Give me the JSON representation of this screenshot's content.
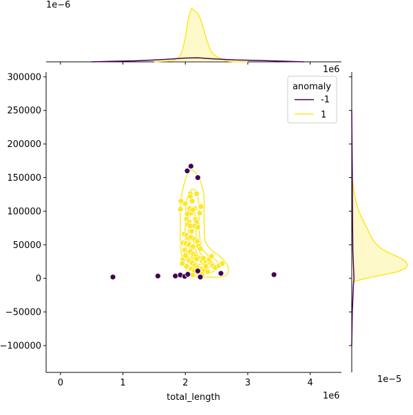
{
  "chart_data": {
    "type": "scatter",
    "kind": "jointplot",
    "xlabel": "total_length",
    "ylabel": "",
    "xlim": [
      -230000,
      4500000
    ],
    "ylim": [
      -140000,
      307000
    ],
    "x_ticks": [
      0,
      1000000,
      2000000,
      3000000,
      4000000
    ],
    "x_tick_labels": [
      "0",
      "1",
      "2",
      "3",
      "4"
    ],
    "x_offset_label": "1e6",
    "y_ticks": [
      -100000,
      -50000,
      0,
      50000,
      100000,
      150000,
      200000,
      250000,
      300000
    ],
    "y_tick_labels": [
      "−100000",
      "−50000",
      "0",
      "50000",
      "100000",
      "150000",
      "200000",
      "250000",
      "300000"
    ],
    "top_marginal_offset_label": "1e−6",
    "right_marginal_offset_label": "1e−5",
    "right_marginal_top_label": "1e6",
    "legend": {
      "title": "anomaly",
      "position": "top-right",
      "entries": [
        {
          "label": "-1",
          "color": "#440154"
        },
        {
          "label": "1",
          "color": "#fde725"
        }
      ]
    },
    "colors": {
      "anomaly": "#440154",
      "normal": "#fde725",
      "normal_edge": "#ffffff"
    },
    "series": [
      {
        "name": "-1",
        "points": [
          [
            840000,
            2000
          ],
          [
            1560000,
            3500
          ],
          [
            1840000,
            3500
          ],
          [
            1920000,
            5000
          ],
          [
            1990000,
            3000
          ],
          [
            2040000,
            6000
          ],
          [
            2200000,
            11000
          ],
          [
            2240000,
            2000
          ],
          [
            2570000,
            7500
          ],
          [
            3420000,
            5500
          ],
          [
            2030000,
            160000
          ],
          [
            2090000,
            167000
          ],
          [
            2200000,
            150000
          ]
        ]
      },
      {
        "name": "1",
        "points": [
          [
            1930000,
            115000
          ],
          [
            1920000,
            103000
          ],
          [
            2000000,
            111000
          ],
          [
            2070000,
            104000
          ],
          [
            2080000,
            126000
          ],
          [
            2080000,
            122000
          ],
          [
            2110000,
            115000
          ],
          [
            2180000,
            126000
          ],
          [
            2150000,
            104000
          ],
          [
            2090000,
            97000
          ],
          [
            2120000,
            102000
          ],
          [
            2230000,
            97000
          ],
          [
            2250000,
            107000
          ],
          [
            2030000,
            96000
          ],
          [
            2020000,
            88000
          ],
          [
            2060000,
            84000
          ],
          [
            2160000,
            88000
          ],
          [
            2180000,
            84000
          ],
          [
            2040000,
            80000
          ],
          [
            2080000,
            78000
          ],
          [
            2150000,
            78000
          ],
          [
            2200000,
            76000
          ],
          [
            2100000,
            70000
          ],
          [
            1980000,
            66000
          ],
          [
            2020000,
            64000
          ],
          [
            2050000,
            60000
          ],
          [
            2090000,
            61000
          ],
          [
            2150000,
            58000
          ],
          [
            2190000,
            55000
          ],
          [
            1960000,
            53000
          ],
          [
            2010000,
            52000
          ],
          [
            2060000,
            50000
          ],
          [
            2120000,
            47000
          ],
          [
            2210000,
            48000
          ],
          [
            2240000,
            44000
          ],
          [
            1990000,
            42000
          ],
          [
            2040000,
            38000
          ],
          [
            2080000,
            40000
          ],
          [
            2130000,
            36000
          ],
          [
            2170000,
            33000
          ],
          [
            2230000,
            30000
          ],
          [
            2270000,
            26000
          ],
          [
            2310000,
            22000
          ],
          [
            2350000,
            20000
          ],
          [
            2400000,
            24000
          ],
          [
            2440000,
            19000
          ],
          [
            2480000,
            16000
          ],
          [
            2540000,
            19000
          ],
          [
            2590000,
            22000
          ],
          [
            1960000,
            28000
          ],
          [
            2030000,
            30000
          ],
          [
            2070000,
            26000
          ],
          [
            2110000,
            23000
          ],
          [
            2150000,
            19000
          ],
          [
            2190000,
            16000
          ],
          [
            2260000,
            14000
          ],
          [
            2300000,
            12000
          ],
          [
            2360000,
            10000
          ],
          [
            1950000,
            22000
          ],
          [
            2020000,
            18000
          ],
          [
            2090000,
            14000
          ],
          [
            2140000,
            11000
          ],
          [
            2210000,
            8000
          ],
          [
            2270000,
            6000
          ],
          [
            2320000,
            26000
          ],
          [
            2380000,
            28000
          ],
          [
            2420000,
            33000
          ],
          [
            2000000,
            34000
          ],
          [
            2180000,
            29000
          ],
          [
            2290000,
            30000
          ],
          [
            2120000,
            5000
          ],
          [
            2330000,
            18000
          ]
        ]
      }
    ],
    "top_marginal": {
      "x": [
        1500000,
        1800000,
        1900000,
        1950000,
        2000000,
        2050000,
        2100000,
        2150000,
        2200000,
        2250000,
        2300000,
        2350000,
        2400000,
        2450000,
        2500000,
        2550000,
        2600000,
        2650000,
        2700000,
        2800000,
        3000000
      ],
      "density_1": [
        0.0,
        0.02,
        0.08,
        0.2,
        0.45,
        0.82,
        1.0,
        0.95,
        0.9,
        0.78,
        0.58,
        0.38,
        0.22,
        0.14,
        0.1,
        0.07,
        0.04,
        0.02,
        0.01,
        0.0,
        0.0
      ],
      "density_minus1_x": [
        500000,
        800000,
        1200000,
        1600000,
        2000000,
        2200000,
        2400000,
        2800000,
        3200000,
        3600000,
        3900000
      ],
      "density_minus1": [
        0.0,
        0.01,
        0.02,
        0.04,
        0.07,
        0.075,
        0.06,
        0.035,
        0.025,
        0.012,
        0.0
      ]
    },
    "right_marginal": {
      "y": [
        -5000,
        0,
        5000,
        10000,
        15000,
        20000,
        25000,
        30000,
        35000,
        40000,
        45000,
        50000,
        55000,
        60000,
        65000,
        70000,
        80000,
        90000,
        100000,
        110000,
        120000,
        135000,
        150000
      ],
      "density_1": [
        0.03,
        0.25,
        0.55,
        0.83,
        0.97,
        1.0,
        0.97,
        0.88,
        0.75,
        0.62,
        0.52,
        0.45,
        0.4,
        0.36,
        0.33,
        0.3,
        0.24,
        0.18,
        0.13,
        0.09,
        0.06,
        0.03,
        0.01
      ],
      "density_minus1_y": [
        -100000,
        -50000,
        -10000,
        0,
        10000,
        40000,
        80000,
        120000,
        160000,
        200000,
        250000
      ],
      "density_minus1": [
        0.0,
        0.01,
        0.03,
        0.04,
        0.035,
        0.02,
        0.015,
        0.012,
        0.01,
        0.005,
        0.0
      ]
    },
    "contours": [
      {
        "level": "outer",
        "points": [
          [
            2250000,
            2000
          ],
          [
            2500000,
            2000
          ],
          [
            2660000,
            5000
          ],
          [
            2680000,
            18000
          ],
          [
            2560000,
            32000
          ],
          [
            2420000,
            42000
          ],
          [
            2320000,
            56000
          ],
          [
            2300000,
            84000
          ],
          [
            2300000,
            118000
          ],
          [
            2260000,
            140000
          ],
          [
            2160000,
            158000
          ],
          [
            2060000,
            160000
          ],
          [
            1980000,
            140000
          ],
          [
            1930000,
            115000
          ],
          [
            1920000,
            85000
          ],
          [
            1920000,
            55000
          ],
          [
            1950000,
            30000
          ],
          [
            2020000,
            12000
          ],
          [
            2120000,
            4000
          ]
        ]
      },
      {
        "level": "2",
        "points": [
          [
            2250000,
            8000
          ],
          [
            2420000,
            9000
          ],
          [
            2530000,
            18000
          ],
          [
            2480000,
            28000
          ],
          [
            2340000,
            36000
          ],
          [
            2250000,
            50000
          ],
          [
            2220000,
            75000
          ],
          [
            2220000,
            105000
          ],
          [
            2180000,
            128000
          ],
          [
            2100000,
            132000
          ],
          [
            2030000,
            120000
          ],
          [
            2000000,
            90000
          ],
          [
            2000000,
            60000
          ],
          [
            2030000,
            35000
          ],
          [
            2100000,
            18000
          ],
          [
            2180000,
            10000
          ]
        ]
      },
      {
        "level": "3",
        "points": [
          [
            2230000,
            14000
          ],
          [
            2380000,
            16000
          ],
          [
            2440000,
            22000
          ],
          [
            2330000,
            30000
          ],
          [
            2210000,
            42000
          ],
          [
            2170000,
            70000
          ],
          [
            2150000,
            98000
          ],
          [
            2080000,
            106000
          ],
          [
            2050000,
            80000
          ],
          [
            2060000,
            52000
          ],
          [
            2100000,
            30000
          ],
          [
            2160000,
            18000
          ]
        ]
      },
      {
        "level": "4",
        "points": [
          [
            2220000,
            18000
          ],
          [
            2330000,
            20000
          ],
          [
            2300000,
            28000
          ],
          [
            2180000,
            38000
          ],
          [
            2130000,
            60000
          ],
          [
            2090000,
            64000
          ],
          [
            2090000,
            42000
          ],
          [
            2130000,
            26000
          ]
        ]
      },
      {
        "level": "5",
        "points": [
          [
            2200000,
            21000
          ],
          [
            2270000,
            23000
          ],
          [
            2200000,
            32000
          ],
          [
            2140000,
            38000
          ],
          [
            2130000,
            28000
          ]
        ]
      }
    ]
  }
}
